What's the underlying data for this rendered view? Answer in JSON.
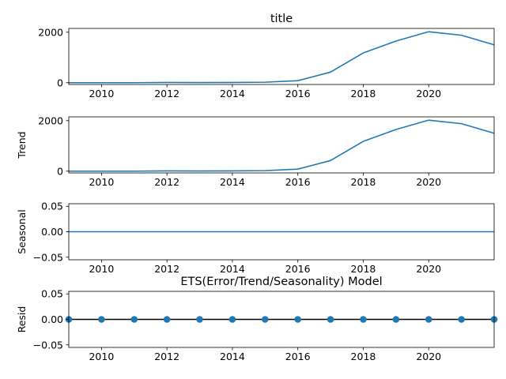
{
  "chart_data": [
    {
      "type": "line",
      "title": "title",
      "ylabel": "",
      "x": [
        2009,
        2010,
        2011,
        2012,
        2013,
        2014,
        2015,
        2016,
        2017,
        2018,
        2019,
        2020,
        2021,
        2022
      ],
      "series": [
        {
          "values": [
            0,
            0,
            0,
            10,
            5,
            10,
            20,
            80,
            420,
            1180,
            1650,
            2020,
            1880,
            1500
          ]
        }
      ],
      "xlim": [
        2009,
        2022
      ],
      "ylim": [
        -70,
        2150
      ],
      "xticks": [
        2010,
        2012,
        2014,
        2016,
        2018,
        2020
      ],
      "xtick_labels": [
        "2010",
        "2012",
        "2014",
        "2016",
        "2018",
        "2020"
      ],
      "yticks": [
        0,
        2000
      ],
      "ytick_labels": [
        "0",
        "2000"
      ]
    },
    {
      "type": "line",
      "title": "",
      "ylabel": "Trend",
      "x": [
        2009,
        2010,
        2011,
        2012,
        2013,
        2014,
        2015,
        2016,
        2017,
        2018,
        2019,
        2020,
        2021,
        2022
      ],
      "series": [
        {
          "values": [
            0,
            0,
            0,
            10,
            5,
            10,
            20,
            80,
            420,
            1180,
            1650,
            2020,
            1880,
            1500
          ]
        }
      ],
      "xlim": [
        2009,
        2022
      ],
      "ylim": [
        -70,
        2150
      ],
      "xticks": [
        2010,
        2012,
        2014,
        2016,
        2018,
        2020
      ],
      "xtick_labels": [
        "2010",
        "2012",
        "2014",
        "2016",
        "2018",
        "2020"
      ],
      "yticks": [
        0,
        2000
      ],
      "ytick_labels": [
        "0",
        "2000"
      ]
    },
    {
      "type": "line",
      "title": "",
      "ylabel": "Seasonal",
      "x": [
        2009,
        2022
      ],
      "series": [
        {
          "values": [
            0,
            0
          ]
        }
      ],
      "xlim": [
        2009,
        2022
      ],
      "ylim": [
        -0.055,
        0.055
      ],
      "xticks": [
        2010,
        2012,
        2014,
        2016,
        2018,
        2020
      ],
      "xtick_labels": [
        "2010",
        "2012",
        "2014",
        "2016",
        "2018",
        "2020"
      ],
      "yticks": [
        -0.05,
        0,
        0.05
      ],
      "ytick_labels": [
        "−0.05",
        "0.00",
        "0.05"
      ]
    },
    {
      "type": "scatter",
      "title": "ETS(Error/Trend/Seasonality) Model",
      "ylabel": "Resid",
      "x": [
        2009,
        2010,
        2011,
        2012,
        2013,
        2014,
        2015,
        2016,
        2017,
        2018,
        2019,
        2020,
        2021,
        2022
      ],
      "series": [
        {
          "values": [
            0,
            0,
            0,
            0,
            0,
            0,
            0,
            0,
            0,
            0,
            0,
            0,
            0,
            0
          ]
        }
      ],
      "baseline": 0,
      "xlim": [
        2009,
        2022
      ],
      "ylim": [
        -0.055,
        0.055
      ],
      "xticks": [
        2010,
        2012,
        2014,
        2016,
        2018,
        2020
      ],
      "xtick_labels": [
        "2010",
        "2012",
        "2014",
        "2016",
        "2018",
        "2020"
      ],
      "yticks": [
        -0.05,
        0,
        0.05
      ],
      "ytick_labels": [
        "−0.05",
        "0.00",
        "0.05"
      ]
    }
  ]
}
